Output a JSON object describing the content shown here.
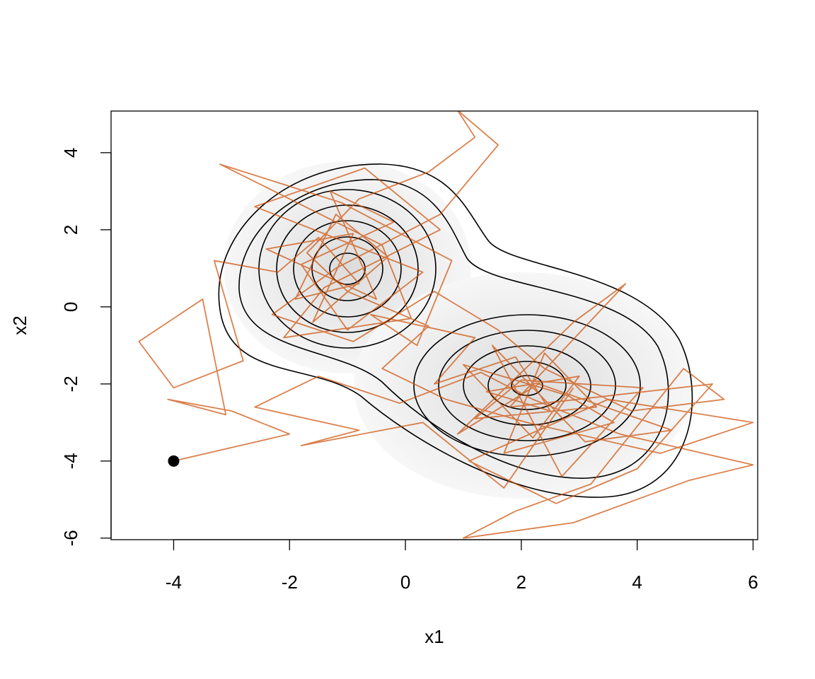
{
  "chart_data": {
    "type": "line",
    "xlabel": "x1",
    "ylabel": "x2",
    "xlim": [
      -5.08,
      6.08
    ],
    "ylim": [
      -6.04,
      5.08
    ],
    "xticks": [
      -4,
      -2,
      0,
      2,
      4,
      6
    ],
    "yticks": [
      -6,
      -4,
      -2,
      0,
      2,
      4
    ],
    "x": [
      -4,
      -2.0,
      -3.0,
      -4.1,
      -3.1,
      -3.5,
      -4.6,
      -4.0,
      -2.8,
      -3.3,
      -2.2,
      -1.5,
      -0.8,
      -1.9,
      -1.2,
      -0.3,
      -1.6,
      -0.9,
      -2.4,
      -0.5,
      -1.3,
      -0.2,
      -1.8,
      -1.0,
      0.3,
      -2.6,
      -0.7,
      0.6,
      -1.4,
      -2.1,
      0.1,
      -0.4,
      -3.2,
      -1.1,
      0.8,
      0.2,
      -0.6,
      1.2,
      0.5,
      1.9,
      2.5,
      1.4,
      3.0,
      2.2,
      1.0,
      2.8,
      3.6,
      1.7,
      2.4,
      3.3,
      1.2,
      2.0,
      4.1,
      2.7,
      1.5,
      3.1,
      4.6,
      2.3,
      0.9,
      2.9,
      3.8,
      1.8,
      5.3,
      4.0,
      2.6,
      1.1,
      3.5,
      6.0,
      4.4,
      2.1,
      0.7,
      -0.4,
      0.4,
      -1.0,
      -1.7,
      -0.8,
      0.4,
      1.2,
      0.9,
      1.6,
      0.6,
      -1.2,
      -2.3,
      -0.9,
      0.5,
      1.6,
      2.4,
      3.9,
      5.5,
      4.8,
      3.2,
      1.9,
      1.0,
      2.9,
      4.9,
      6.0,
      3.7,
      2.2,
      1.3,
      -0.1,
      -1.5,
      -2.6,
      -0.8,
      -1.8,
      0.3,
      1.7,
      2.9
    ],
    "series": [
      {
        "color": "#cc4c02",
        "values": [
          -4,
          -3.3,
          -2.7,
          -2.4,
          -2.8,
          0.2,
          -0.9,
          -2.1,
          -1.4,
          1.2,
          0.9,
          1.8,
          0.6,
          0.2,
          2.4,
          1.3,
          -0.4,
          1.9,
          1.5,
          0.2,
          3.0,
          2.2,
          1.1,
          -0.6,
          0.9,
          2.6,
          3.6,
          2.0,
          0.5,
          -0.8,
          -0.3,
          1.6,
          3.7,
          2.7,
          1.2,
          -1.0,
          -0.2,
          -0.8,
          -2.0,
          -1.3,
          -2.7,
          -2.2,
          -1.8,
          -3.4,
          -1.5,
          -2.3,
          -3.0,
          -3.8,
          -1.2,
          -2.6,
          -2.9,
          -1.9,
          -2.1,
          -4.4,
          -1.0,
          -3.5,
          -3.2,
          -2.0,
          -3.3,
          -0.4,
          0.6,
          -2.6,
          -2.0,
          -4.2,
          -5.1,
          -4.0,
          -2.4,
          -3.0,
          -3.8,
          -3.0,
          -2.4,
          -1.6,
          -0.5,
          0.4,
          1.4,
          2.8,
          3.5,
          4.4,
          5.1,
          4.2,
          2.4,
          1.0,
          -0.2,
          -0.9,
          0.4,
          -0.6,
          -1.6,
          -2.7,
          -2.4,
          -1.6,
          -4.6,
          -5.3,
          -6.0,
          -5.6,
          -4.5,
          -4.1,
          -3.3,
          -2.4,
          -1.7,
          -2.5,
          -1.8,
          -2.6,
          -3.2,
          -3.6,
          -3.0,
          -4.7,
          -2.1
        ]
      }
    ]
  }
}
